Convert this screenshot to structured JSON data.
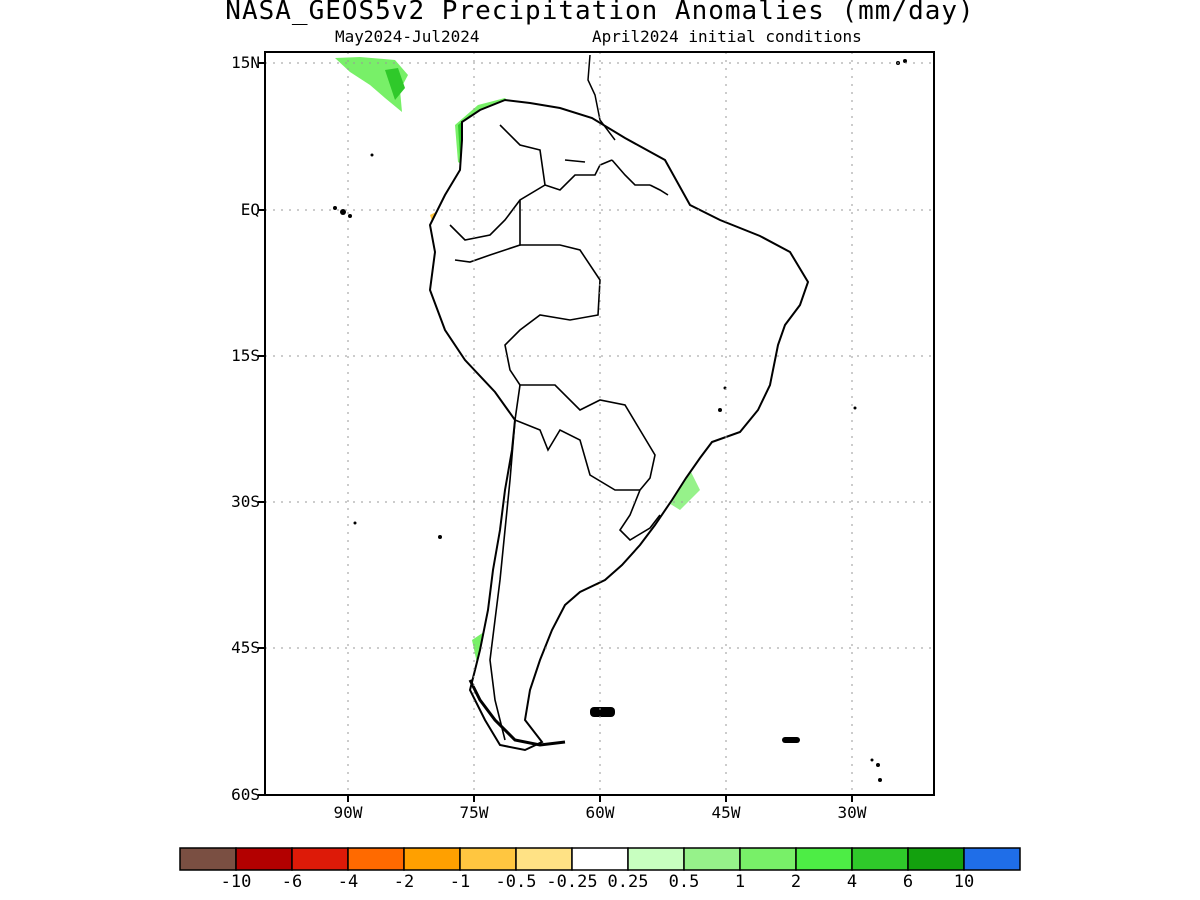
{
  "header": {
    "title": "NASA_GEOS5v2 Precipitation Anomalies (mm/day)",
    "period": "May2024-Jul2024",
    "init": "April2024 initial conditions"
  },
  "axes": {
    "lat_labels": [
      "15N",
      "EQ",
      "15S",
      "30S",
      "45S",
      "60S"
    ],
    "lon_labels": [
      "90W",
      "75W",
      "60W",
      "45W",
      "30W"
    ]
  },
  "colorbar": {
    "colors": [
      "#7a4f42",
      "#b30000",
      "#dd1a08",
      "#ff6a00",
      "#ffa000",
      "#ffc640",
      "#ffe285",
      "#ffffff",
      "#c8ffc0",
      "#96f28a",
      "#78f068",
      "#4ded45",
      "#2fc92a",
      "#13a10e",
      "#1f6ee8"
    ],
    "labels": [
      "-10",
      "-6",
      "-4",
      "-2",
      "-1",
      "-0.5",
      "-0.25",
      "0.25",
      "0.5",
      "1",
      "2",
      "4",
      "6",
      "10"
    ]
  },
  "map": {
    "region": "South America",
    "lat_range": [
      "60S",
      "15N"
    ],
    "lon_range": [
      "100W",
      "20W"
    ],
    "grid": "dotted"
  }
}
